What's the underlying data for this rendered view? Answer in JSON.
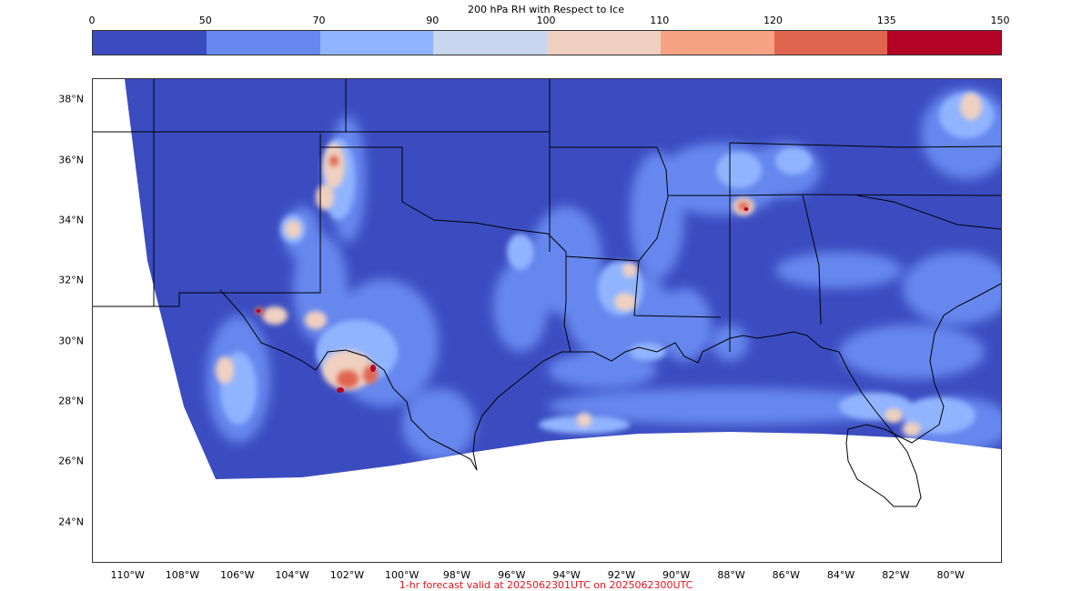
{
  "colorbar": {
    "title": "200 hPa RH with Respect to Ice",
    "ticks": [
      "0",
      "50",
      "70",
      "90",
      "100",
      "110",
      "120",
      "135",
      "150"
    ],
    "colors": [
      "#3b4cc0",
      "#6688ee",
      "#91b4ff",
      "#c8d6ef",
      "#f0d0c0",
      "#f6a385",
      "#e0654f",
      "#b40426"
    ]
  },
  "map": {
    "lat_labels": [
      "38°N",
      "36°N",
      "34°N",
      "32°N",
      "30°N",
      "28°N",
      "26°N",
      "24°N"
    ],
    "lon_labels": [
      "110°W",
      "108°W",
      "106°W",
      "104°W",
      "102°W",
      "100°W",
      "98°W",
      "96°W",
      "94°W",
      "92°W",
      "90°W",
      "88°W",
      "86°W",
      "84°W",
      "82°W",
      "80°W"
    ],
    "extent": {
      "lon_min": -111.3,
      "lon_max": -78.2,
      "lat_min": 22.7,
      "lat_max": 38.7
    }
  },
  "footer": {
    "text": "1-hr forecast valid at 2025062301UTC on 2025062300UTC"
  }
}
